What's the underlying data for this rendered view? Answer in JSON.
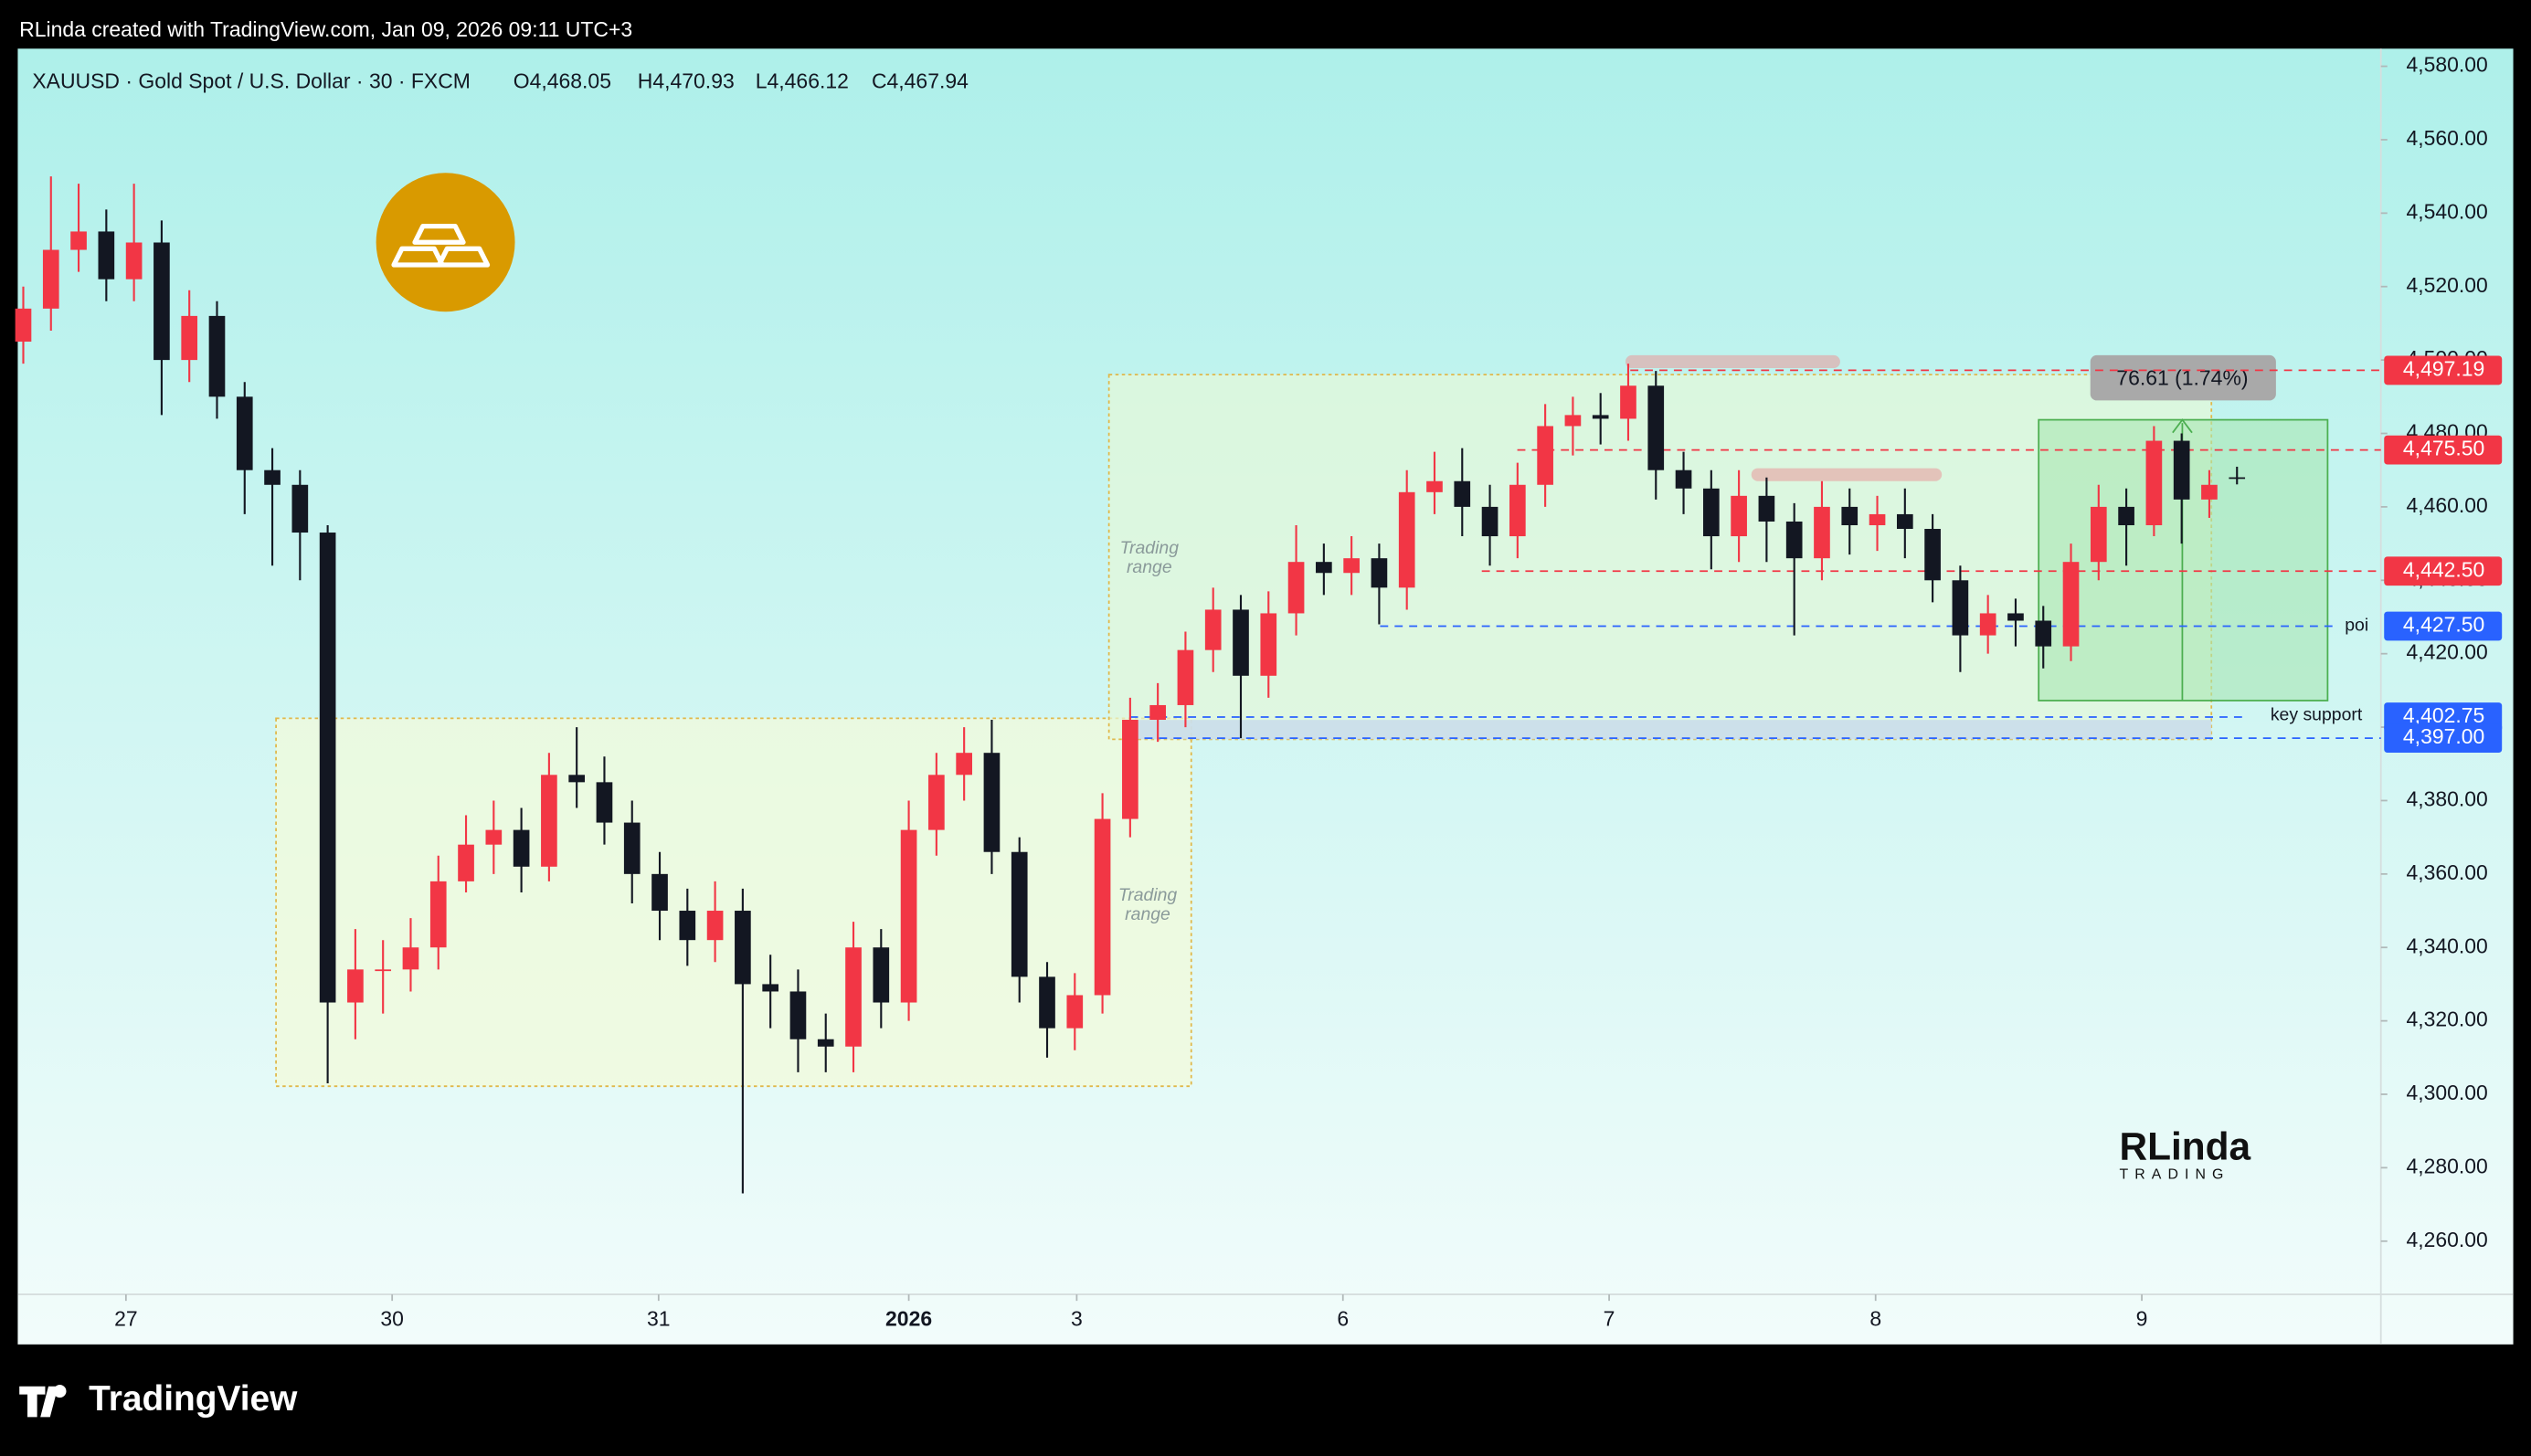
{
  "header": {
    "attribution": "RLinda created with TradingView.com, Jan 09, 2026 09:11 UTC+3",
    "brand": "TradingView",
    "watermark": "RLinda",
    "watermark_sub": "TRADING"
  },
  "chart_data": {
    "type": "candlestick",
    "title": "XAUUSD · Gold Spot / U.S. Dollar · 30 · FXCM",
    "ohlc_labels": [
      "O4,468.05",
      "H4,470.93",
      "L4,466.12",
      "C4,467.94"
    ],
    "up_color": "#f23645",
    "down_color": "#131722",
    "open": [
      4505,
      4514,
      4530,
      4535,
      4522,
      4532,
      4500,
      4512,
      4490,
      4470,
      4466,
      4453,
      4325,
      4334,
      4334,
      4340,
      4358,
      4368,
      4372,
      4362,
      4387,
      4385,
      4374,
      4360,
      4350,
      4342,
      4350,
      4330,
      4328,
      4315,
      4313,
      4340,
      4325,
      4372,
      4387,
      4393,
      4366,
      4332,
      4318,
      4327,
      4375,
      4402,
      4406,
      4421,
      4432,
      4414,
      4431,
      4445,
      4442,
      4446,
      4438,
      4464,
      4467,
      4460,
      4452,
      4466,
      4482,
      4485,
      4484,
      4493,
      4470,
      4465,
      4452,
      4463,
      4456,
      4446,
      4460,
      4455,
      4458,
      4454,
      4440,
      4425,
      4431,
      4429,
      4422,
      4445,
      4460,
      4455,
      4478,
      4462,
      4468.05
    ],
    "high": [
      4520,
      4550,
      4548,
      4541,
      4548,
      4538,
      4519,
      4516,
      4494,
      4476,
      4470,
      4455,
      4345,
      4342,
      4348,
      4365,
      4376,
      4380,
      4378,
      4393,
      4400,
      4392,
      4380,
      4366,
      4356,
      4358,
      4356,
      4338,
      4334,
      4322,
      4347,
      4345,
      4380,
      4393,
      4400,
      4402,
      4370,
      4336,
      4333,
      4382,
      4408,
      4412,
      4426,
      4438,
      4436,
      4437,
      4455,
      4450,
      4452,
      4450,
      4470,
      4475,
      4476,
      4466,
      4472,
      4488,
      4490,
      4491,
      4499,
      4497,
      4475,
      4470,
      4470,
      4468,
      4461,
      4467,
      4465,
      4463,
      4465,
      4458,
      4444,
      4436,
      4435,
      4433,
      4450,
      4466,
      4465,
      4482,
      4480,
      4470,
      4470.93
    ],
    "low": [
      4499,
      4508,
      4524,
      4516,
      4516,
      4485,
      4494,
      4484,
      4458,
      4444,
      4440,
      4303,
      4315,
      4322,
      4328,
      4334,
      4355,
      4360,
      4355,
      4358,
      4378,
      4368,
      4352,
      4342,
      4335,
      4336,
      4273,
      4318,
      4306,
      4306,
      4306,
      4318,
      4320,
      4365,
      4380,
      4360,
      4325,
      4310,
      4312,
      4322,
      4370,
      4396,
      4400,
      4415,
      4397,
      4408,
      4425,
      4436,
      4436,
      4428,
      4432,
      4458,
      4452,
      4444,
      4446,
      4460,
      4474,
      4477,
      4478,
      4462,
      4458,
      4443,
      4445,
      4445,
      4425,
      4440,
      4447,
      4448,
      4446,
      4434,
      4415,
      4420,
      4422,
      4416,
      4418,
      4440,
      4444,
      4452,
      4450,
      4457,
      4466.12
    ],
    "close": [
      4514,
      4530,
      4535,
      4522,
      4532,
      4500,
      4512,
      4490,
      4470,
      4466,
      4453,
      4325,
      4334,
      4334,
      4340,
      4358,
      4368,
      4372,
      4362,
      4387,
      4385,
      4374,
      4360,
      4350,
      4342,
      4350,
      4330,
      4328,
      4315,
      4313,
      4340,
      4325,
      4372,
      4387,
      4393,
      4366,
      4332,
      4318,
      4327,
      4375,
      4402,
      4406,
      4421,
      4432,
      4414,
      4431,
      4445,
      4442,
      4446,
      4438,
      4464,
      4467,
      4460,
      4452,
      4466,
      4482,
      4485,
      4484,
      4493,
      4470,
      4465,
      4452,
      4463,
      4456,
      4446,
      4460,
      4455,
      4458,
      4454,
      4440,
      4425,
      4431,
      4429,
      4422,
      4445,
      4460,
      4455,
      4478,
      4462,
      4466,
      4467.94
    ],
    "xlim": [
      -0.2,
      85.2
    ],
    "xticks": [
      {
        "value": 3.71,
        "label": "27"
      },
      {
        "value": 13.33,
        "label": "30"
      },
      {
        "value": 22.96,
        "label": "31"
      },
      {
        "value": 32.0,
        "label": "2026"
      },
      {
        "value": 38.07,
        "label": "3"
      },
      {
        "value": 47.69,
        "label": "6"
      },
      {
        "value": 57.31,
        "label": "7"
      },
      {
        "value": 66.94,
        "label": "8"
      },
      {
        "value": 76.56,
        "label": "9"
      }
    ],
    "ylim": [
      4245.5,
      4584.8
    ],
    "yticks": [
      {
        "value": 4260,
        "label": "4,260.00"
      },
      {
        "value": 4280,
        "label": "4,280.00"
      },
      {
        "value": 4300,
        "label": "4,300.00"
      },
      {
        "value": 4320,
        "label": "4,320.00"
      },
      {
        "value": 4340,
        "label": "4,340.00"
      },
      {
        "value": 4360,
        "label": "4,360.00"
      },
      {
        "value": 4380,
        "label": "4,380.00"
      },
      {
        "value": 4400,
        "label": "4,400.00"
      },
      {
        "value": 4420,
        "label": "4,420.00"
      },
      {
        "value": 4440,
        "label": "4,440.00"
      },
      {
        "value": 4460,
        "label": "4,460.00"
      },
      {
        "value": 4480,
        "label": "4,480.00"
      },
      {
        "value": 4500,
        "label": "4,500.00"
      },
      {
        "value": 4520,
        "label": "4,520.00"
      },
      {
        "value": 4540,
        "label": "4,540.00"
      },
      {
        "value": 4560,
        "label": "4,560.00"
      },
      {
        "value": 4580,
        "label": "4,580.00"
      }
    ],
    "price_lines": [
      {
        "value": 4497.19,
        "label": "4,497.19",
        "color": "#f23645"
      },
      {
        "value": 4475.5,
        "label": "4,475.50",
        "color": "#f23645"
      },
      {
        "value": 4442.5,
        "label": "4,442.50",
        "color": "#f23645"
      },
      {
        "value": 4427.5,
        "label": "4,427.50",
        "color": "#2962ff"
      },
      {
        "value": 4402.75,
        "label": "4,402.75",
        "color": "#2962ff"
      },
      {
        "value": 4397.0,
        "label": "4,397.00",
        "color": "#2962ff"
      }
    ],
    "poi_label": "poi",
    "key_support_label": "key support",
    "measure_label": "76.61 (1.74%)",
    "range_labels": [
      [
        "Trading",
        "range"
      ],
      [
        "Trading",
        "range"
      ]
    ]
  }
}
